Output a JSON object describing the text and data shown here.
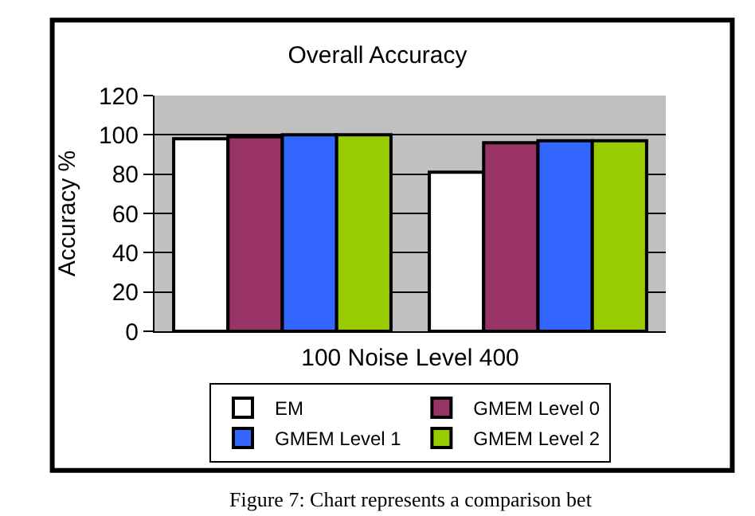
{
  "chart_data": {
    "type": "bar",
    "title": "Overall Accuracy",
    "xlabel": "100 Noise Level 400",
    "ylabel": "Accuracy %",
    "categories": [
      null,
      null
    ],
    "series": [
      {
        "name": "EM",
        "color": "#ffffff",
        "values": [
          98,
          81
        ]
      },
      {
        "name": "GMEM Level 0",
        "color": "#993366",
        "values": [
          99,
          96
        ]
      },
      {
        "name": "GMEM Level 1",
        "color": "#3366ff",
        "values": [
          100,
          97
        ]
      },
      {
        "name": "GMEM Level 2",
        "color": "#99cc00",
        "values": [
          100,
          97
        ]
      }
    ],
    "ylim": [
      0,
      120
    ],
    "yticks": [
      0,
      20,
      40,
      60,
      80,
      100,
      120
    ],
    "grid": "y",
    "legend": "bottom",
    "annotations": [
      "Figure 7: Chart represents a comparison bet"
    ]
  }
}
